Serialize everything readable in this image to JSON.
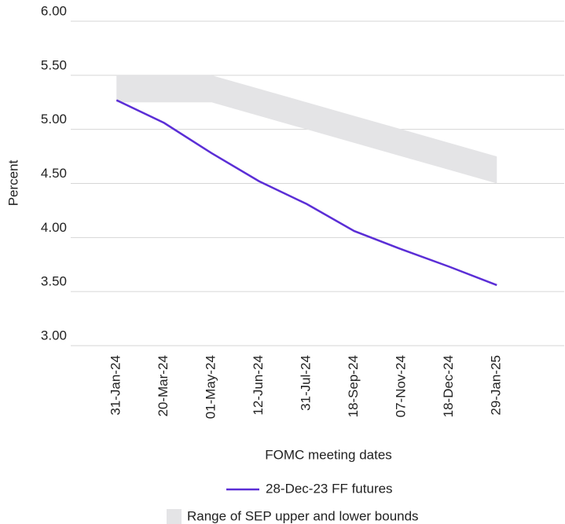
{
  "chart_data": {
    "type": "line",
    "y_label": "Percent",
    "x_label": "FOMC meeting dates",
    "categories": [
      "31-Jan-24",
      "20-Mar-24",
      "01-May-24",
      "12-Jun-24",
      "31-Jul-24",
      "18-Sep-24",
      "07-Nov-24",
      "18-Dec-24",
      "29-Jan-25"
    ],
    "series": [
      {
        "name": "28-Dec-23 FF futures",
        "color": "#5b2ed6",
        "values": [
          5.27,
          5.06,
          4.78,
          4.52,
          4.31,
          4.06,
          3.89,
          3.73,
          3.56
        ]
      }
    ],
    "band": {
      "name": "Range of SEP upper and lower bounds",
      "color": "#e4e4e6",
      "upper": [
        5.5,
        5.5,
        5.5,
        5.375,
        5.25,
        5.125,
        5.0,
        4.875,
        4.75
      ],
      "lower": [
        5.25,
        5.25,
        5.25,
        5.125,
        5.0,
        4.875,
        4.75,
        4.625,
        4.5
      ]
    },
    "ylim": [
      3,
      6
    ],
    "yticks": [
      {
        "value": 3,
        "label": "3.00"
      },
      {
        "value": 3.5,
        "label": "3.50"
      },
      {
        "value": 4,
        "label": "4.00"
      },
      {
        "value": 4.5,
        "label": "4.50"
      },
      {
        "value": 5,
        "label": "5.00"
      },
      {
        "value": 5.5,
        "label": "5.50"
      },
      {
        "value": 6,
        "label": "6.00"
      }
    ],
    "grid": true
  }
}
